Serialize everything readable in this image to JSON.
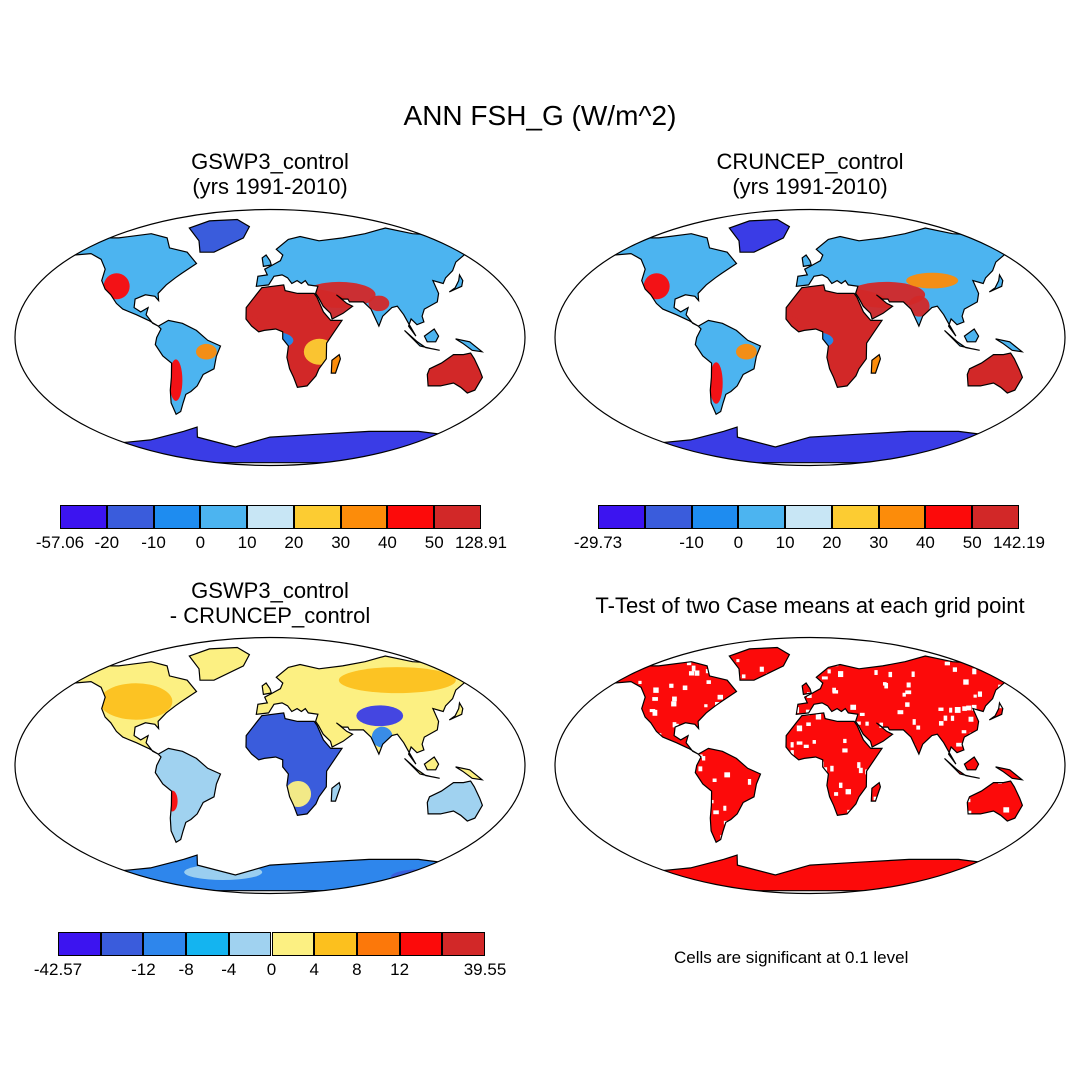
{
  "figure": {
    "title": "ANN FSH_G (W/m^2)",
    "note": "Cells are significant at 0.1 level"
  },
  "panels": [
    {
      "title_line1": "GSWP3_control",
      "title_line2": "(yrs 1991-2010)",
      "colorbar": {
        "colors": [
          "#3c14f0",
          "#3a5cdc",
          "#1e8cf0",
          "#4cb4f0",
          "#c8e6f5",
          "#fccc32",
          "#fc8c0a",
          "#fc0a0a",
          "#d22828"
        ],
        "labels": [
          "-57.06",
          "-20",
          "-10",
          "0",
          "10",
          "20",
          "30",
          "40",
          "50",
          "128.91"
        ]
      }
    },
    {
      "title_line1": "CRUNCEP_control",
      "title_line2": "(yrs 1991-2010)",
      "colorbar": {
        "colors": [
          "#3c14f0",
          "#3a5cdc",
          "#1e8cf0",
          "#4cb4f0",
          "#c8e6f5",
          "#fccc32",
          "#fc8c0a",
          "#fc0a0a",
          "#d22828"
        ],
        "labels": [
          "-29.73",
          "",
          "-10",
          "0",
          "10",
          "20",
          "30",
          "40",
          "50",
          "142.19"
        ]
      }
    },
    {
      "title_line1": "GSWP3_control",
      "title_line2": "- CRUNCEP_control",
      "colorbar": {
        "colors": [
          "#3c14f0",
          "#3a5cdc",
          "#2e86ec",
          "#14b4f0",
          "#a0d2f0",
          "#fcf082",
          "#fcc01e",
          "#fc780a",
          "#fc0a0a",
          "#d22828"
        ],
        "labels": [
          "-42.57",
          "",
          "-12",
          "-8",
          "-4",
          "0",
          "4",
          "8",
          "12",
          "",
          "39.55"
        ]
      }
    },
    {
      "title_line1": "T-Test of two Case means at each grid point",
      "title_line2": ""
    }
  ]
}
